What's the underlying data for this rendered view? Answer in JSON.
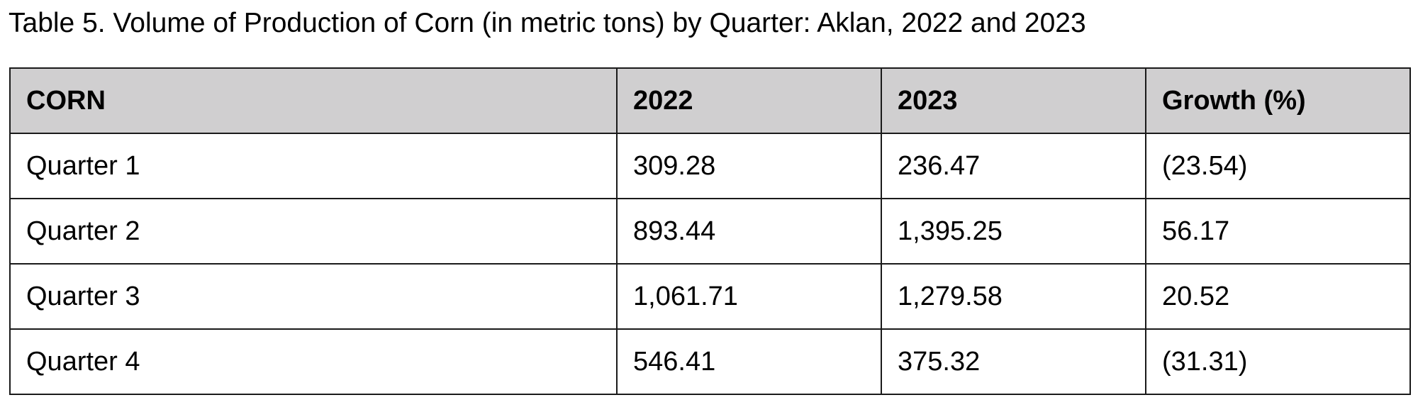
{
  "title": "Table 5. Volume of Production of Corn (in metric tons) by Quarter: Aklan, 2022 and 2023",
  "table": {
    "header": [
      "CORN",
      "2022",
      "2023",
      "Growth (%)"
    ],
    "rows": [
      [
        "Quarter 1",
        "309.28",
        "236.47",
        "(23.54)"
      ],
      [
        "Quarter 2",
        "893.44",
        "1,395.25",
        "56.17"
      ],
      [
        "Quarter 3",
        "1,061.71",
        "1,279.58",
        "20.52"
      ],
      [
        "Quarter 4",
        "546.41",
        "375.32",
        "(31.31)"
      ]
    ]
  }
}
